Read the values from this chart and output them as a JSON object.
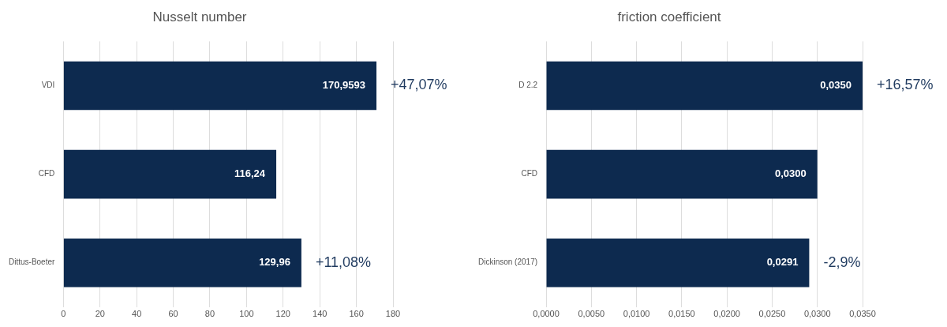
{
  "chart_data": [
    {
      "type": "bar",
      "orientation": "horizontal",
      "title": "Nusselt number",
      "categories": [
        "VDI",
        "CFD",
        "Dittus-Boeter"
      ],
      "values": [
        170.9593,
        116.24,
        129.96
      ],
      "color": "#0d2a4f",
      "value_labels": [
        "170,9593",
        "116,24",
        "129,96"
      ],
      "xlim": [
        0,
        180
      ],
      "xticks": [
        0,
        20,
        40,
        60,
        80,
        100,
        120,
        140,
        160,
        180
      ],
      "grid": "x",
      "legend": false,
      "annotations": [
        {
          "text": "+47,07%",
          "x": 170.9593,
          "y": "VDI"
        },
        {
          "text": "+11,08%",
          "x": 129.96,
          "y": "Dittus-Boeter"
        }
      ]
    },
    {
      "type": "bar",
      "orientation": "horizontal",
      "title": "friction coefficient",
      "categories": [
        "D 2.2",
        "CFD",
        "Dickinson (2017)"
      ],
      "values": [
        0.035,
        0.03,
        0.0291
      ],
      "color": "#0d2a4f",
      "value_labels": [
        "0,0350",
        "0,0300",
        "0,0291"
      ],
      "xlim": [
        0,
        0.035
      ],
      "xticks": [
        {
          "value": 0,
          "label": "0,0000"
        },
        {
          "value": 0.005,
          "label": "0,0050"
        },
        {
          "value": 0.01,
          "label": "0,0100"
        },
        {
          "value": 0.015,
          "label": "0,0150"
        },
        {
          "value": 0.02,
          "label": "0,0200"
        },
        {
          "value": 0.025,
          "label": "0,0250"
        },
        {
          "value": 0.03,
          "label": "0,0300"
        },
        {
          "value": 0.035,
          "label": "0,0350"
        }
      ],
      "grid": "x",
      "legend": false,
      "annotations": [
        {
          "text": "+16,57%",
          "x": 0.035,
          "y": "D 2.2"
        },
        {
          "text": "-2,9%",
          "x": 0.0291,
          "y": "Dickinson (2017)"
        }
      ]
    }
  ]
}
